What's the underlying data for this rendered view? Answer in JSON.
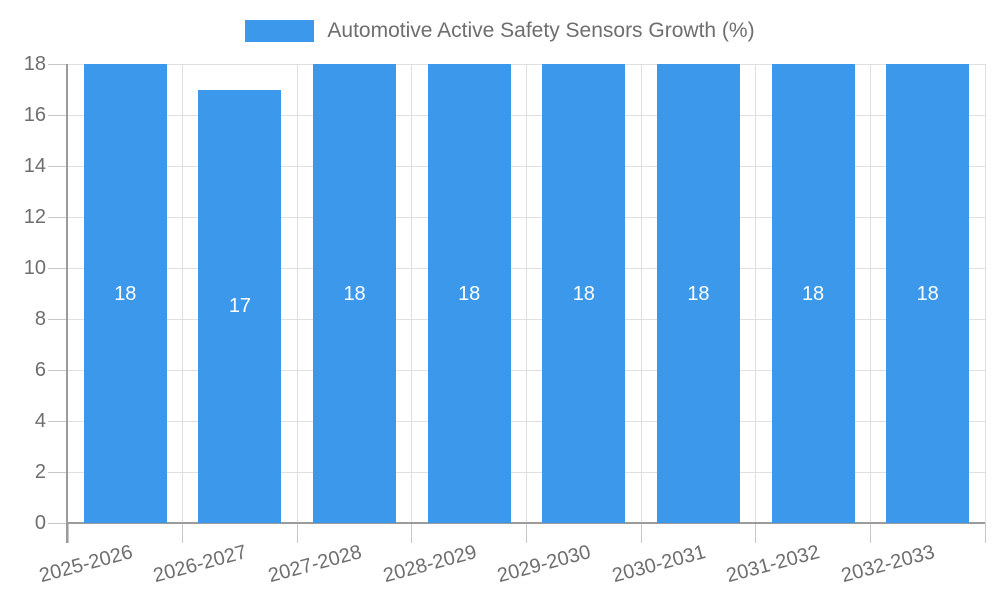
{
  "legend": {
    "label": "Automotive Active Safety Sensors Growth (%)"
  },
  "colors": {
    "bar": "#3b98eb",
    "grid": "#e0e0e0",
    "tick": "#c7c7c7",
    "axis": "#9b9b9b",
    "text": "#6e6e6e",
    "bar_label": "#ffffff",
    "background": "#ffffff"
  },
  "chart_data": {
    "type": "bar",
    "title": "Automotive Active Safety Sensors Growth (%)",
    "categories": [
      "2025-2026",
      "2026-2027",
      "2027-2028",
      "2028-2029",
      "2029-2030",
      "2030-2031",
      "2031-2032",
      "2032-2033"
    ],
    "values": [
      18,
      17,
      18,
      18,
      18,
      18,
      18,
      18
    ],
    "series": [
      {
        "name": "Automotive Active Safety Sensors Growth (%)",
        "values": [
          18,
          17,
          18,
          18,
          18,
          18,
          18,
          18
        ]
      }
    ],
    "xlabel": "",
    "ylabel": "",
    "ylim": [
      0,
      18
    ],
    "yticks": [
      0,
      2,
      4,
      6,
      8,
      10,
      12,
      14,
      16,
      18
    ],
    "grid": true,
    "legend_position": "top",
    "xtick_rotation_deg": -15,
    "bar_value_labels": {
      "position": "center",
      "color": "#ffffff"
    }
  }
}
